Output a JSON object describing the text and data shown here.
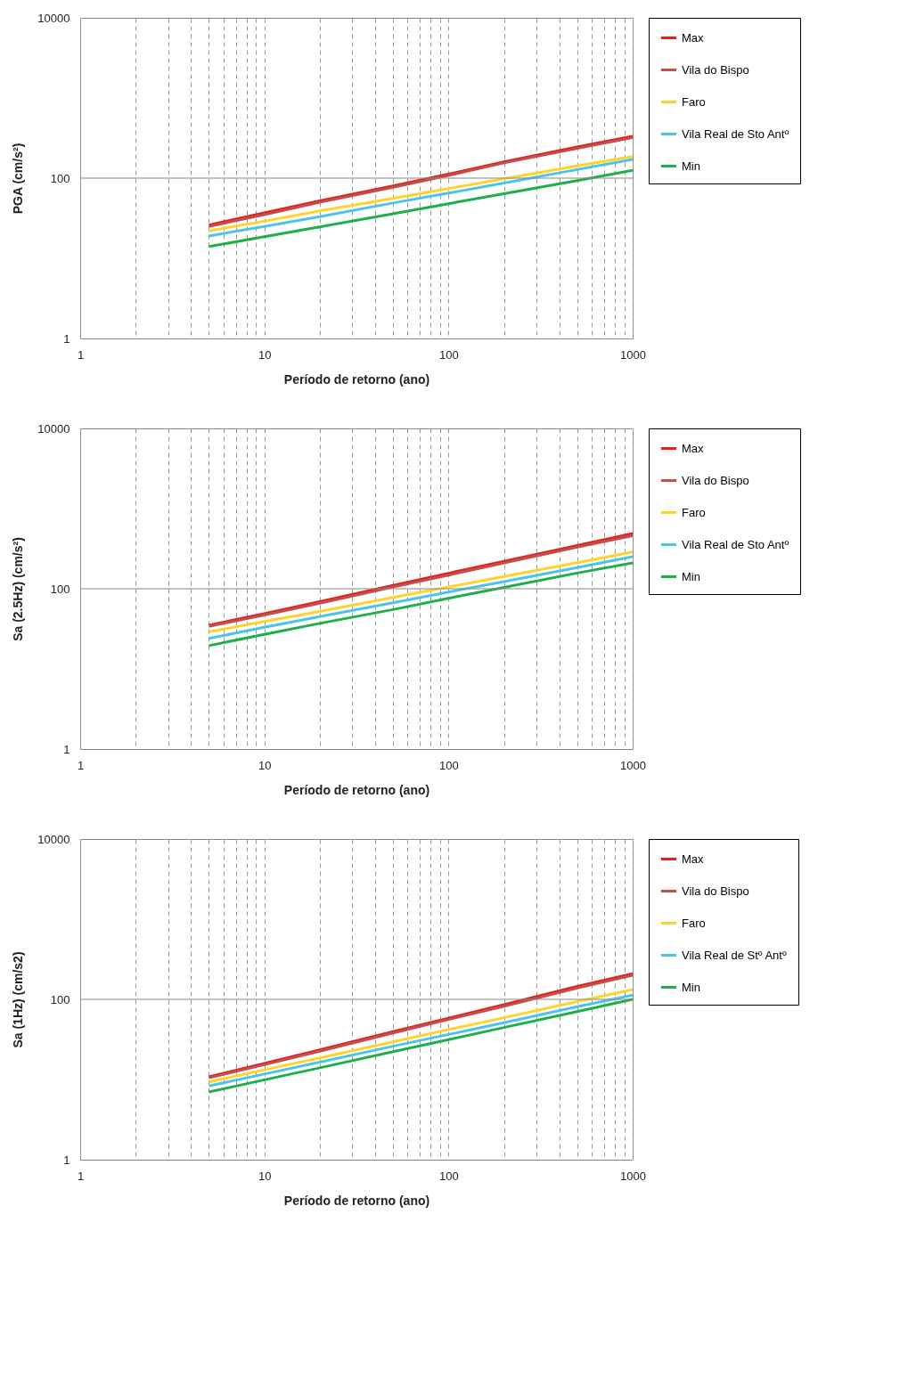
{
  "chart_data": [
    {
      "type": "line",
      "xlabel": "Período de retorno (ano)",
      "ylabel": "PGA (cm/s²)",
      "log": "xy",
      "grid": "x",
      "ref_lines": [
        {
          "axis": "y",
          "value": 100
        }
      ],
      "legend": "right",
      "x": [
        5,
        10,
        20,
        50,
        100,
        200,
        500,
        1000
      ],
      "xlim": [
        1,
        1000
      ],
      "ylim": [
        1,
        10000
      ],
      "xticks": [
        1,
        {
          "value": 2,
          "label": null
        },
        {
          "value": 3,
          "label": null
        },
        {
          "value": 4,
          "label": null
        },
        {
          "value": 5,
          "label": null
        },
        {
          "value": 6,
          "label": null
        },
        {
          "value": 7,
          "label": null
        },
        {
          "value": 8,
          "label": null
        },
        {
          "value": 9,
          "label": null
        },
        10,
        {
          "value": 20,
          "label": null
        },
        {
          "value": 30,
          "label": null
        },
        {
          "value": 40,
          "label": null
        },
        {
          "value": 50,
          "label": null
        },
        {
          "value": 60,
          "label": null
        },
        {
          "value": 70,
          "label": null
        },
        {
          "value": 80,
          "label": null
        },
        {
          "value": 90,
          "label": null
        },
        100,
        {
          "value": 200,
          "label": null
        },
        {
          "value": 300,
          "label": null
        },
        {
          "value": 400,
          "label": null
        },
        {
          "value": 500,
          "label": null
        },
        {
          "value": 600,
          "label": null
        },
        {
          "value": 700,
          "label": null
        },
        {
          "value": 800,
          "label": null
        },
        {
          "value": 900,
          "label": null
        },
        1000
      ],
      "yticks": [
        1,
        100,
        10000
      ],
      "series": [
        {
          "name": "Max",
          "color": "#e8201c",
          "values": [
            26,
            37,
            52,
            80,
            112,
            160,
            245,
            333
          ]
        },
        {
          "name": "Vila do Bispo",
          "color": "#c0504d",
          "values": [
            25,
            35,
            50,
            77,
            108,
            155,
            235,
            320
          ]
        },
        {
          "name": "Faro",
          "color": "#ffd42a",
          "values": [
            22,
            29,
            39,
            56,
            74,
            98,
            142,
            186
          ]
        },
        {
          "name": "Vila Real de Sto Antº",
          "color": "#4bc4e8",
          "values": [
            19,
            25,
            33,
            49,
            65,
            87,
            128,
            171
          ]
        },
        {
          "name": "Min",
          "color": "#1fae4a",
          "values": [
            14,
            18.6,
            24.7,
            36,
            48,
            64,
            93,
            125
          ]
        }
      ]
    },
    {
      "type": "line",
      "xlabel": "Período de retorno (ano)",
      "ylabel": "Sa (2.5Hz) (cm/s²)",
      "log": "xy",
      "grid": "x",
      "ref_lines": [
        {
          "axis": "y",
          "value": 100
        }
      ],
      "legend": "right",
      "x": [
        5,
        10,
        20,
        50,
        100,
        200,
        500,
        1000
      ],
      "xlim": [
        1,
        1000
      ],
      "ylim": [
        1,
        10000
      ],
      "xticks": [
        1,
        {
          "value": 2,
          "label": null
        },
        {
          "value": 3,
          "label": null
        },
        {
          "value": 4,
          "label": null
        },
        {
          "value": 5,
          "label": null
        },
        {
          "value": 6,
          "label": null
        },
        {
          "value": 7,
          "label": null
        },
        {
          "value": 8,
          "label": null
        },
        {
          "value": 9,
          "label": null
        },
        10,
        {
          "value": 20,
          "label": null
        },
        {
          "value": 30,
          "label": null
        },
        {
          "value": 40,
          "label": null
        },
        {
          "value": 50,
          "label": null
        },
        {
          "value": 60,
          "label": null
        },
        {
          "value": 70,
          "label": null
        },
        {
          "value": 80,
          "label": null
        },
        {
          "value": 90,
          "label": null
        },
        100,
        {
          "value": 200,
          "label": null
        },
        {
          "value": 300,
          "label": null
        },
        {
          "value": 400,
          "label": null
        },
        {
          "value": 500,
          "label": null
        },
        {
          "value": 600,
          "label": null
        },
        {
          "value": 700,
          "label": null
        },
        {
          "value": 800,
          "label": null
        },
        {
          "value": 900,
          "label": null
        },
        1000
      ],
      "yticks": [
        1,
        100,
        10000
      ],
      "series": [
        {
          "name": "Max",
          "color": "#e8201c",
          "values": [
            35,
            49,
            69,
            110,
            156,
            220,
            347,
            489
          ]
        },
        {
          "name": "Vila do Bispo",
          "color": "#c0504d",
          "values": [
            34,
            47,
            66,
            105,
            148,
            210,
            330,
            460
          ]
        },
        {
          "name": "Faro",
          "color": "#ffd42a",
          "values": [
            29,
            39,
            52,
            78,
            105,
            142,
            211,
            288
          ]
        },
        {
          "name": "Vila Real de Sto Antº",
          "color": "#4bc4e8",
          "values": [
            24,
            33,
            45,
            67,
            91,
            123,
            184,
            251
          ]
        },
        {
          "name": "Min",
          "color": "#1fae4a",
          "values": [
            19.5,
            27,
            37,
            55,
            76,
            104,
            157,
            210
          ]
        }
      ]
    },
    {
      "type": "line",
      "xlabel": "Período de retorno (ano)",
      "ylabel": "Sa (1Hz) (cm/s2)",
      "log": "xy",
      "grid": "x",
      "ref_lines": [
        {
          "axis": "y",
          "value": 100
        }
      ],
      "legend": "right",
      "x": [
        5,
        10,
        20,
        50,
        100,
        200,
        500,
        1000
      ],
      "xlim": [
        1,
        1000
      ],
      "ylim": [
        1,
        10000
      ],
      "xticks": [
        1,
        {
          "value": 2,
          "label": null
        },
        {
          "value": 3,
          "label": null
        },
        {
          "value": 4,
          "label": null
        },
        {
          "value": 5,
          "label": null
        },
        {
          "value": 6,
          "label": null
        },
        {
          "value": 7,
          "label": null
        },
        {
          "value": 8,
          "label": null
        },
        {
          "value": 9,
          "label": null
        },
        10,
        {
          "value": 20,
          "label": null
        },
        {
          "value": 30,
          "label": null
        },
        {
          "value": 40,
          "label": null
        },
        {
          "value": 50,
          "label": null
        },
        {
          "value": 60,
          "label": null
        },
        {
          "value": 70,
          "label": null
        },
        {
          "value": 80,
          "label": null
        },
        {
          "value": 90,
          "label": null
        },
        100,
        {
          "value": 200,
          "label": null
        },
        {
          "value": 300,
          "label": null
        },
        {
          "value": 400,
          "label": null
        },
        {
          "value": 500,
          "label": null
        },
        {
          "value": 600,
          "label": null
        },
        {
          "value": 700,
          "label": null
        },
        {
          "value": 800,
          "label": null
        },
        {
          "value": 900,
          "label": null
        },
        1000
      ],
      "yticks": [
        1,
        100,
        10000
      ],
      "series": [
        {
          "name": "Max",
          "color": "#e8201c",
          "values": [
            10.8,
            15.9,
            23.4,
            39.6,
            58,
            86,
            145,
            209
          ]
        },
        {
          "name": "Vila do Bispo",
          "color": "#c0504d",
          "values": [
            10.5,
            15.3,
            22.5,
            38,
            56,
            82,
            138,
            200
          ]
        },
        {
          "name": "Faro",
          "color": "#ffd42a",
          "values": [
            9.3,
            13.2,
            18.6,
            29.5,
            42,
            59,
            94,
            133
          ]
        },
        {
          "name": "Vila Real de Stº Antº",
          "color": "#4bc4e8",
          "values": [
            8.3,
            11.7,
            16.5,
            26,
            36.5,
            51,
            81,
            113
          ]
        },
        {
          "name": "Min",
          "color": "#1fae4a",
          "values": [
            7,
            9.9,
            14,
            22.2,
            31.4,
            44.5,
            70.5,
            100
          ]
        }
      ]
    }
  ]
}
